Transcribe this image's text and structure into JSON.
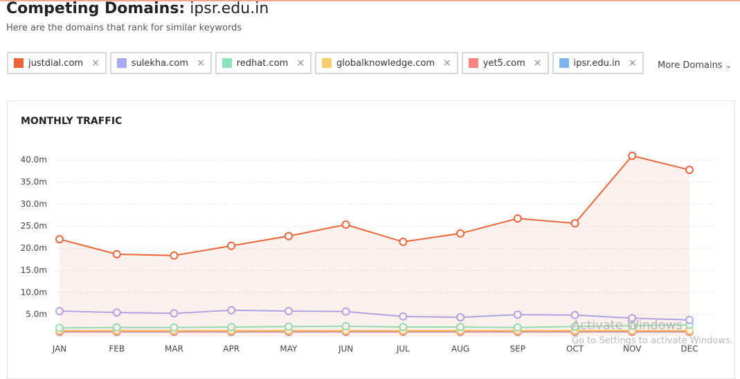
{
  "header": {
    "title": "Competing Domains:",
    "domain": "ipsr.edu.in",
    "subtitle": "Here are the domains that rank for similar keywords"
  },
  "more_domains": "More Domains",
  "chart_data": {
    "type": "line",
    "title": "MONTHLY TRAFFIC",
    "categories": [
      "JAN",
      "FEB",
      "MAR",
      "APR",
      "MAY",
      "JUN",
      "JUL",
      "AUG",
      "SEP",
      "OCT",
      "NOV",
      "DEC"
    ],
    "series": [
      {
        "name": "justdial.com",
        "color": "#ec6437",
        "area": true,
        "values": [
          22.1,
          18.7,
          18.4,
          20.6,
          22.8,
          25.4,
          21.5,
          23.4,
          26.8,
          25.7,
          41.0,
          37.8
        ]
      },
      {
        "name": "sulekha.com",
        "color": "#a9a9f3",
        "values": [
          5.8,
          5.5,
          5.3,
          6.0,
          5.8,
          5.7,
          4.6,
          4.4,
          5.0,
          4.9,
          4.2,
          3.8
        ]
      },
      {
        "name": "redhat.com",
        "color": "#8be4bd",
        "values": [
          2.0,
          2.1,
          2.1,
          2.2,
          2.3,
          2.4,
          2.2,
          2.2,
          2.1,
          2.3,
          2.5,
          2.7
        ]
      },
      {
        "name": "globalknowledge.com",
        "color": "#fbcd6a",
        "values": [
          1.4,
          1.4,
          1.4,
          1.4,
          1.4,
          1.4,
          1.4,
          1.4,
          1.4,
          1.4,
          1.4,
          1.4
        ]
      },
      {
        "name": "yet5.com",
        "color": "#fb8380",
        "values": [
          1.2,
          1.2,
          1.2,
          1.2,
          1.2,
          1.2,
          1.2,
          1.2,
          1.2,
          1.2,
          1.2,
          1.2
        ]
      },
      {
        "name": "ipsr.edu.in",
        "color": "#7fb3ec",
        "values": [
          1.1,
          1.1,
          1.1,
          1.1,
          1.1,
          1.1,
          1.1,
          1.1,
          1.1,
          1.1,
          1.1,
          1.1
        ]
      }
    ],
    "ylim": [
      0,
      42
    ],
    "yticks": [
      {
        "value": 5,
        "label": "5.0m"
      },
      {
        "value": 10,
        "label": "10.0m"
      },
      {
        "value": 15,
        "label": "15.0m"
      },
      {
        "value": 20,
        "label": "20.0m"
      },
      {
        "value": 25,
        "label": "25.0m"
      },
      {
        "value": 30,
        "label": "30.0m"
      },
      {
        "value": 35,
        "label": "35.0m"
      },
      {
        "value": 40,
        "label": "40.0m"
      }
    ],
    "grid": true
  },
  "watermark": {
    "line1": "Activate Windows",
    "line2": "Go to Settings to activate Windows."
  }
}
